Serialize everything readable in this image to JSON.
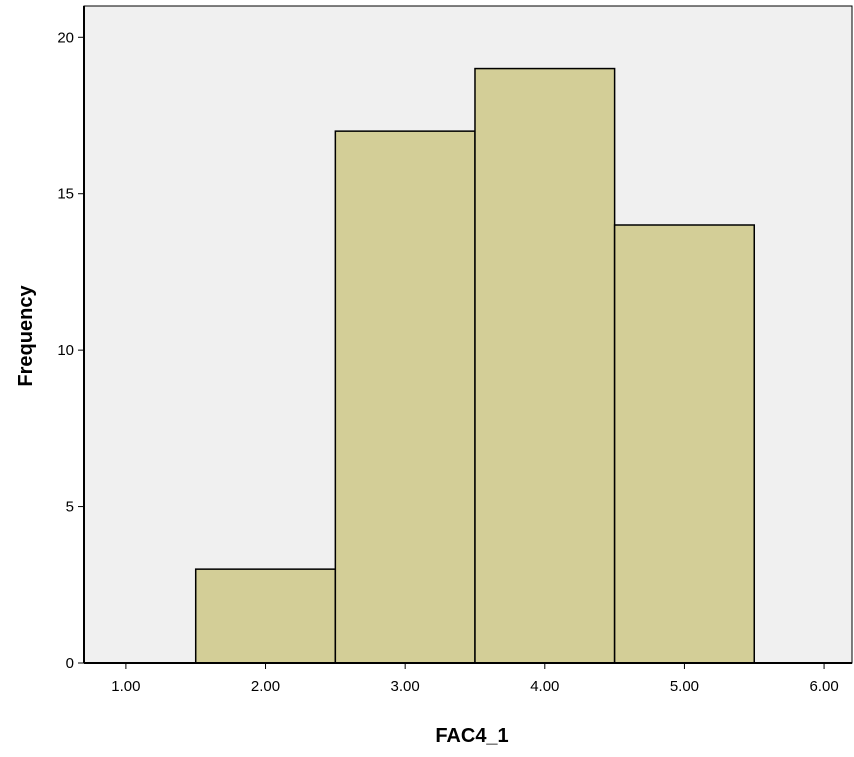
{
  "chart_data": {
    "type": "bar",
    "subtype": "histogram",
    "title": "",
    "xlabel": "FAC4_1",
    "ylabel": "Frequency",
    "xlim": [
      0.7,
      6.2
    ],
    "ylim": [
      0,
      21
    ],
    "x_ticks": [
      1.0,
      2.0,
      3.0,
      4.0,
      5.0,
      6.0
    ],
    "x_tick_labels": [
      "1.00",
      "2.00",
      "3.00",
      "4.00",
      "5.00",
      "6.00"
    ],
    "y_ticks": [
      0,
      5,
      10,
      15,
      20
    ],
    "y_tick_labels": [
      "0",
      "5",
      "10",
      "15",
      "20"
    ],
    "bins": [
      {
        "center": 2.0,
        "start": 1.5,
        "end": 2.5,
        "value": 3
      },
      {
        "center": 3.0,
        "start": 2.5,
        "end": 3.5,
        "value": 17
      },
      {
        "center": 4.0,
        "start": 3.5,
        "end": 4.5,
        "value": 19
      },
      {
        "center": 5.0,
        "start": 4.5,
        "end": 5.5,
        "value": 14
      }
    ],
    "grid": false,
    "legend": "none",
    "colors": {
      "plot_background": "#f0f0f0",
      "bar_fill": "#d3ce97",
      "bar_stroke": "#000000",
      "axis": "#000000"
    }
  }
}
